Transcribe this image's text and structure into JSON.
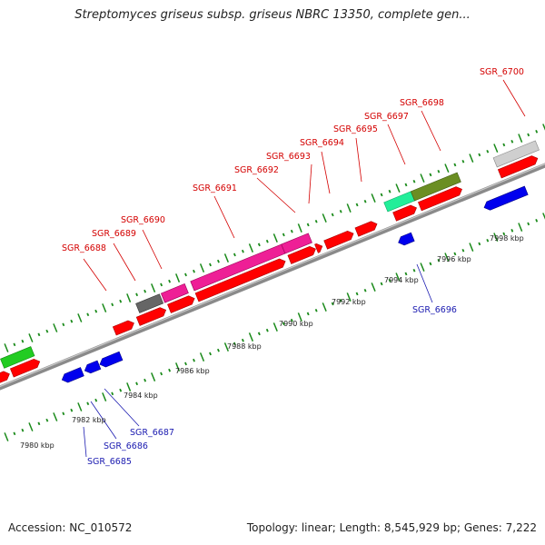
{
  "header": {
    "title": "Streptomyces griseus subsp. griseus NBRC 13350, complete gen..."
  },
  "footer": {
    "accession": "Accession: NC_010572",
    "topology": "Topology: linear; Length: 8,545,929 bp; Genes: 7,222"
  },
  "axis": {
    "tick_labels": [
      "7980 kbp",
      "7982 kbp",
      "7984 kbp",
      "7986 kbp",
      "7988 kbp",
      "7990 kbp",
      "7992 kbp",
      "7994 kbp",
      "7996 kbp",
      "7998 kbp"
    ]
  },
  "genes": {
    "forward_labels": [
      "SGR_6688",
      "SGR_6689",
      "SGR_6690",
      "SGR_6691",
      "SGR_6692",
      "SGR_6693",
      "SGR_6694",
      "SGR_6695",
      "SGR_6697",
      "SGR_6698",
      "SGR_6700"
    ],
    "reverse_labels": [
      "SGR_6685",
      "SGR_6686",
      "SGR_6687",
      "SGR_6696"
    ]
  },
  "colors": {
    "forward": "#ff0000",
    "reverse": "#0000ee",
    "magenta": "#ee1f96",
    "dark_grey": "#666666",
    "light_grey": "#cfcfcf",
    "olive": "#6b8e23",
    "teal": "#22ee99",
    "green": "#22cc22",
    "backbone": "#8a8a8a",
    "ticks": "#1a8a1a"
  }
}
